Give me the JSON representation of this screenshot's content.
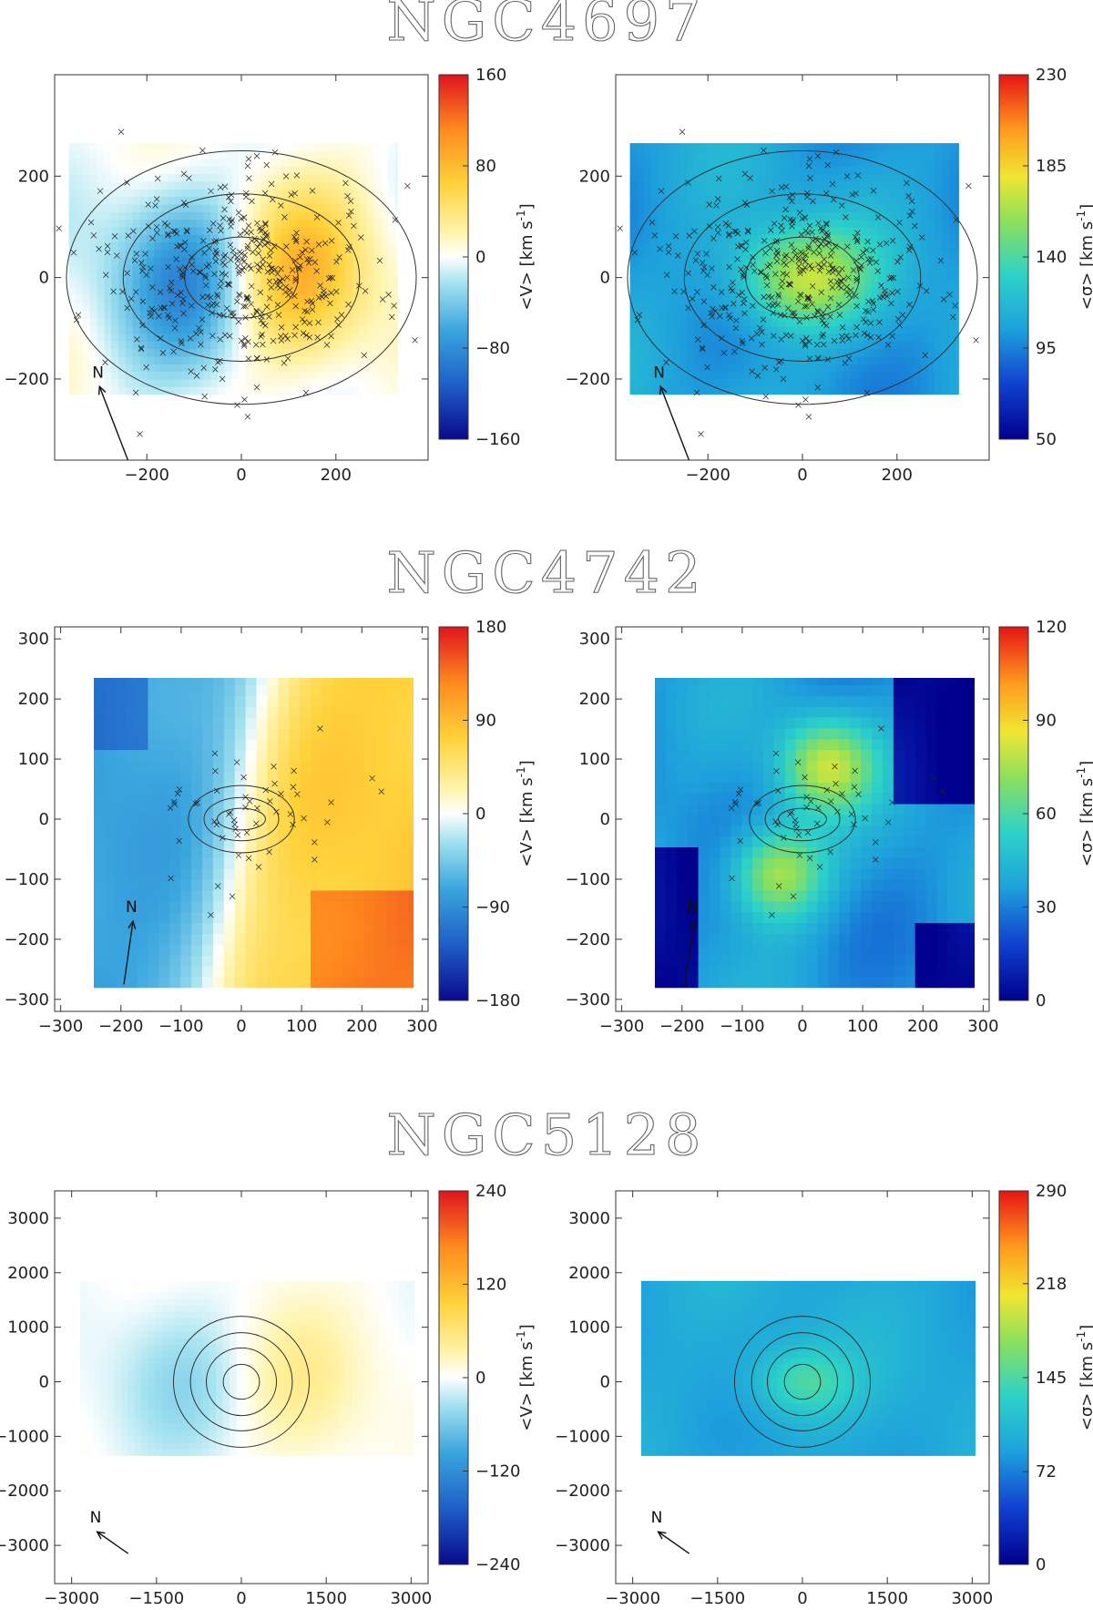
{
  "chart_data": [
    {
      "type": "heatmap",
      "title": "NGC4697",
      "panels": [
        {
          "quantity": "velocity",
          "cbar_label": "<V> [km s-1]",
          "cmap": "diverging",
          "clim": [
            -160,
            160
          ],
          "cbar_ticks": [
            -160,
            -80,
            0,
            80,
            160
          ],
          "xlim": [
            -395,
            395
          ],
          "ylim": [
            -360,
            400
          ],
          "xticks": [
            -200,
            0,
            200
          ],
          "yticks": [
            -200,
            0,
            200
          ],
          "data_extent": {
            "x": [
              -365,
              330
            ],
            "y": [
              -230,
              265
            ]
          },
          "field": {
            "kind": "rotation",
            "amp": 100,
            "rscale": 110,
            "patch": 15
          },
          "ellipses": [
            {
              "a": 120,
              "b": 80
            },
            {
              "a": 250,
              "b": 165
            },
            {
              "a": 370,
              "b": 250
            }
          ],
          "star_count": 420,
          "star_spread": 110,
          "north_arrow": {
            "label": "N",
            "from": [
              -240,
              -360
            ],
            "to": [
              -300,
              -215
            ]
          }
        },
        {
          "quantity": "dispersion",
          "cbar_label": "<σ> [km s-1]",
          "cmap": "jet",
          "clim": [
            50,
            230
          ],
          "cbar_ticks": [
            50,
            95,
            140,
            185,
            230
          ],
          "xlim": [
            -395,
            395
          ],
          "ylim": [
            -360,
            400
          ],
          "xticks": [
            -200,
            0,
            200
          ],
          "yticks": [
            -200,
            0,
            200
          ],
          "data_extent": {
            "x": [
              -365,
              330
            ],
            "y": [
              -230,
              265
            ]
          },
          "field": {
            "kind": "central_peak",
            "base": 105,
            "peak": 170,
            "rscale": 140,
            "patch": 15
          },
          "ellipses": [
            {
              "a": 120,
              "b": 80
            },
            {
              "a": 250,
              "b": 165
            },
            {
              "a": 370,
              "b": 250
            }
          ],
          "star_count": 420,
          "star_spread": 110,
          "north_arrow": {
            "label": "N",
            "from": [
              -240,
              -360
            ],
            "to": [
              -300,
              -215
            ]
          }
        }
      ]
    },
    {
      "type": "heatmap",
      "title": "NGC4742",
      "panels": [
        {
          "quantity": "velocity",
          "cbar_label": "<V> [km s-1]",
          "cmap": "diverging",
          "clim": [
            -180,
            180
          ],
          "cbar_ticks": [
            -180,
            -90,
            0,
            90,
            180
          ],
          "xlim": [
            -310,
            310
          ],
          "ylim": [
            -320,
            320
          ],
          "xticks": [
            -300,
            -200,
            -100,
            0,
            100,
            200,
            300
          ],
          "yticks": [
            -300,
            -200,
            -100,
            0,
            100,
            200,
            300
          ],
          "data_extent": {
            "x": [
              -245,
              285
            ],
            "y": [
              -280,
              235
            ]
          },
          "field": {
            "kind": "gradient",
            "amp": 75,
            "corner_boost": 60,
            "patch": 18
          },
          "ellipses": [
            {
              "a": 40,
              "b": 18
            },
            {
              "a": 62,
              "b": 36
            },
            {
              "a": 88,
              "b": 56
            }
          ],
          "star_count": 55,
          "star_spread": 70,
          "north_arrow": {
            "label": "N",
            "from": [
              -195,
              -275
            ],
            "to": [
              -180,
              -170
            ]
          }
        },
        {
          "quantity": "dispersion",
          "cbar_label": "<σ> [km s-1]",
          "cmap": "jet",
          "clim": [
            0,
            120
          ],
          "cbar_ticks": [
            0,
            30,
            60,
            90,
            120
          ],
          "xlim": [
            -310,
            310
          ],
          "ylim": [
            -320,
            320
          ],
          "xticks": [
            -300,
            -200,
            -100,
            0,
            100,
            200,
            300
          ],
          "yticks": [
            -300,
            -200,
            -100,
            0,
            100,
            200,
            300
          ],
          "data_extent": {
            "x": [
              -245,
              285
            ],
            "y": [
              -280,
              235
            ]
          },
          "field": {
            "kind": "bipolar",
            "base": 35,
            "peak": 78,
            "patch": 18
          },
          "ellipses": [
            {
              "a": 40,
              "b": 18
            },
            {
              "a": 62,
              "b": 36
            },
            {
              "a": 88,
              "b": 56
            }
          ],
          "star_count": 55,
          "star_spread": 70,
          "north_arrow": {
            "label": "N",
            "from": [
              -195,
              -275
            ],
            "to": [
              -180,
              -170
            ]
          }
        }
      ]
    },
    {
      "type": "heatmap",
      "title": "NGC5128",
      "panels": [
        {
          "quantity": "velocity",
          "cbar_label": "<V> [km s-1]",
          "cmap": "diverging",
          "clim": [
            -240,
            240
          ],
          "cbar_ticks": [
            -240,
            -120,
            0,
            120,
            240
          ],
          "xlim": [
            -3300,
            3300
          ],
          "ylim": [
            -3700,
            3500
          ],
          "xticks": [
            -3000,
            -1500,
            0,
            1500,
            3000
          ],
          "yticks": [
            -3000,
            -2000,
            -1000,
            0,
            1000,
            2000,
            3000
          ],
          "data_extent": {
            "x": [
              -2850,
              3050
            ],
            "y": [
              -1350,
              1850
            ]
          },
          "field": {
            "kind": "rotation",
            "amp": 55,
            "rscale": 900,
            "patch": 120
          },
          "ellipses": [
            {
              "a": 320,
              "b": 320
            },
            {
              "a": 620,
              "b": 620
            },
            {
              "a": 900,
              "b": 900
            },
            {
              "a": 1200,
              "b": 1200
            }
          ],
          "star_count": 0,
          "star_spread": 0,
          "north_arrow": {
            "label": "N",
            "from": [
              -2000,
              -3150
            ],
            "to": [
              -2550,
              -2750
            ]
          }
        },
        {
          "quantity": "dispersion",
          "cbar_label": "<σ> [km s-1]",
          "cmap": "jet",
          "clim": [
            0,
            290
          ],
          "cbar_ticks": [
            0,
            72,
            145,
            218,
            290
          ],
          "xlim": [
            -3300,
            3300
          ],
          "ylim": [
            -3700,
            3500
          ],
          "xticks": [
            -3000,
            -1500,
            0,
            1500,
            3000
          ],
          "yticks": [
            -3000,
            -2000,
            -1000,
            0,
            1000,
            2000,
            3000
          ],
          "data_extent": {
            "x": [
              -2850,
              3050
            ],
            "y": [
              -1350,
              1850
            ]
          },
          "field": {
            "kind": "central_peak",
            "base": 95,
            "peak": 145,
            "rscale": 900,
            "patch": 120
          },
          "ellipses": [
            {
              "a": 320,
              "b": 320
            },
            {
              "a": 620,
              "b": 620
            },
            {
              "a": 900,
              "b": 900
            },
            {
              "a": 1200,
              "b": 1200
            }
          ],
          "star_count": 0,
          "star_spread": 0,
          "north_arrow": {
            "label": "N",
            "from": [
              -2000,
              -3150
            ],
            "to": [
              -2550,
              -2750
            ]
          }
        }
      ]
    }
  ]
}
